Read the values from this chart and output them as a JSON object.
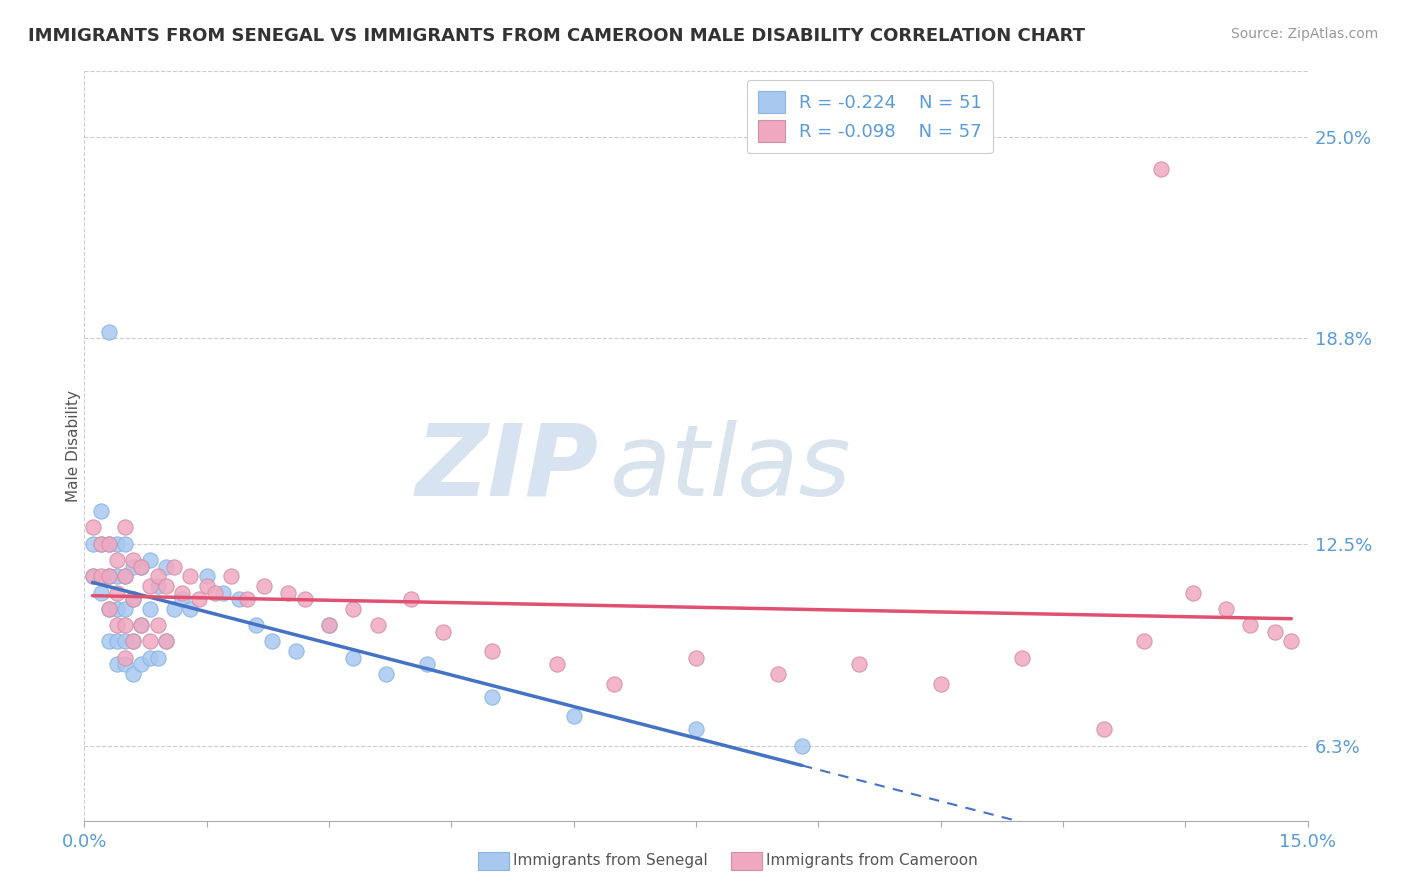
{
  "title": "IMMIGRANTS FROM SENEGAL VS IMMIGRANTS FROM CAMEROON MALE DISABILITY CORRELATION CHART",
  "source": "Source: ZipAtlas.com",
  "ylabel": "Male Disability",
  "xlim": [
    0.0,
    0.15
  ],
  "ylim": [
    0.04,
    0.27
  ],
  "yticks": [
    0.063,
    0.125,
    0.188,
    0.25
  ],
  "ytick_labels": [
    "6.3%",
    "12.5%",
    "18.8%",
    "25.0%"
  ],
  "xticks": [
    0.0,
    0.015,
    0.03,
    0.045,
    0.06,
    0.075,
    0.09,
    0.105,
    0.12,
    0.135,
    0.15
  ],
  "xtick_labels": [
    "0.0%",
    "",
    "",
    "",
    "",
    "",
    "",
    "",
    "",
    "",
    "15.0%"
  ],
  "senegal_color": "#a8c8f0",
  "cameroon_color": "#f0a8c0",
  "senegal_R": -0.224,
  "senegal_N": 51,
  "cameroon_R": -0.098,
  "cameroon_N": 57,
  "legend_label_senegal": "Immigrants from Senegal",
  "legend_label_cameroon": "Immigrants from Cameroon",
  "regression_color_senegal": "#4472C4",
  "regression_color_cameroon": "#E05070",
  "watermark_zip": "ZIP",
  "watermark_atlas": "atlas",
  "senegal_x": [
    0.001,
    0.001,
    0.002,
    0.002,
    0.002,
    0.003,
    0.003,
    0.003,
    0.003,
    0.003,
    0.004,
    0.004,
    0.004,
    0.004,
    0.004,
    0.005,
    0.005,
    0.005,
    0.005,
    0.005,
    0.006,
    0.006,
    0.006,
    0.006,
    0.007,
    0.007,
    0.007,
    0.008,
    0.008,
    0.008,
    0.009,
    0.009,
    0.01,
    0.01,
    0.011,
    0.012,
    0.013,
    0.015,
    0.017,
    0.019,
    0.021,
    0.023,
    0.026,
    0.03,
    0.033,
    0.037,
    0.042,
    0.05,
    0.06,
    0.075,
    0.088
  ],
  "senegal_y": [
    0.115,
    0.125,
    0.11,
    0.125,
    0.135,
    0.095,
    0.105,
    0.115,
    0.125,
    0.19,
    0.088,
    0.095,
    0.105,
    0.115,
    0.125,
    0.088,
    0.095,
    0.105,
    0.115,
    0.125,
    0.085,
    0.095,
    0.108,
    0.118,
    0.088,
    0.1,
    0.118,
    0.09,
    0.105,
    0.12,
    0.09,
    0.112,
    0.095,
    0.118,
    0.105,
    0.108,
    0.105,
    0.115,
    0.11,
    0.108,
    0.1,
    0.095,
    0.092,
    0.1,
    0.09,
    0.085,
    0.088,
    0.078,
    0.072,
    0.068,
    0.063
  ],
  "cameroon_x": [
    0.001,
    0.001,
    0.002,
    0.002,
    0.003,
    0.003,
    0.003,
    0.004,
    0.004,
    0.004,
    0.005,
    0.005,
    0.005,
    0.005,
    0.006,
    0.006,
    0.006,
    0.007,
    0.007,
    0.008,
    0.008,
    0.009,
    0.009,
    0.01,
    0.01,
    0.011,
    0.012,
    0.013,
    0.014,
    0.015,
    0.016,
    0.018,
    0.02,
    0.022,
    0.025,
    0.027,
    0.03,
    0.033,
    0.036,
    0.04,
    0.044,
    0.05,
    0.058,
    0.065,
    0.075,
    0.085,
    0.095,
    0.105,
    0.115,
    0.125,
    0.13,
    0.132,
    0.136,
    0.14,
    0.143,
    0.146,
    0.148
  ],
  "cameroon_y": [
    0.115,
    0.13,
    0.115,
    0.125,
    0.105,
    0.115,
    0.125,
    0.1,
    0.11,
    0.12,
    0.09,
    0.1,
    0.115,
    0.13,
    0.095,
    0.108,
    0.12,
    0.1,
    0.118,
    0.095,
    0.112,
    0.1,
    0.115,
    0.095,
    0.112,
    0.118,
    0.11,
    0.115,
    0.108,
    0.112,
    0.11,
    0.115,
    0.108,
    0.112,
    0.11,
    0.108,
    0.1,
    0.105,
    0.1,
    0.108,
    0.098,
    0.092,
    0.088,
    0.082,
    0.09,
    0.085,
    0.088,
    0.082,
    0.09,
    0.068,
    0.095,
    0.24,
    0.11,
    0.105,
    0.1,
    0.098,
    0.095
  ]
}
